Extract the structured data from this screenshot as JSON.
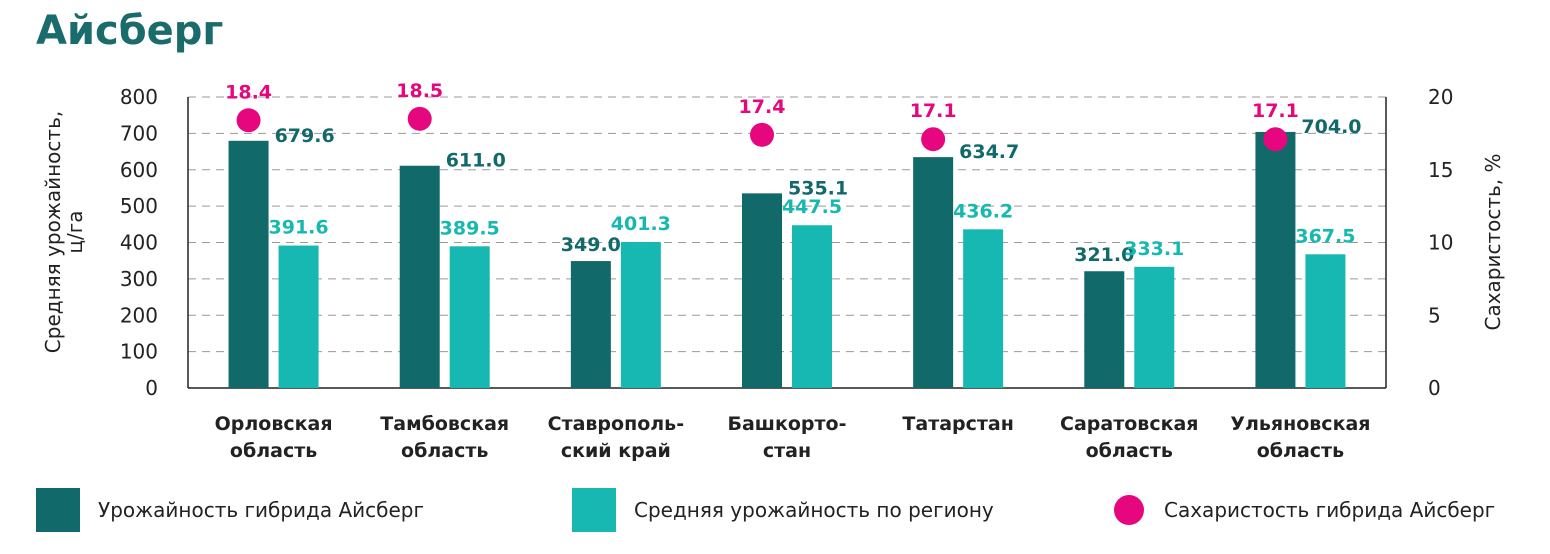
{
  "title": "Айсберг",
  "colors": {
    "yield": "#12696a",
    "avg": "#16b8b1",
    "sugar": "#e6067e",
    "title": "#1a6b6b"
  },
  "legend": [
    {
      "label": "Урожайность гибрида Айсберг",
      "marker": "square",
      "color": "#12696a"
    },
    {
      "label": "Средняя урожайность по региону",
      "marker": "square",
      "color": "#16b8b1"
    },
    {
      "label": "Сахаристость гибрида Айсберг",
      "marker": "circle",
      "color": "#e6067e"
    }
  ],
  "chart_data": {
    "type": "bar",
    "title": "Айсберг",
    "categories": [
      [
        "Орловская",
        "область"
      ],
      [
        "Тамбовская",
        "область"
      ],
      [
        "Ставрополь-",
        "ский край"
      ],
      [
        "Башкорто-",
        "стан"
      ],
      [
        "Татарстан"
      ],
      [
        "Саратовская",
        "область"
      ],
      [
        "Ульяновская",
        "область"
      ]
    ],
    "series": [
      {
        "name": "Урожайность гибрида Айсберг",
        "axis": "left",
        "type": "bar",
        "values": [
          679.6,
          611.0,
          349.0,
          535.1,
          634.7,
          321.0,
          704.0
        ],
        "labels": [
          "679.6",
          "611.0",
          "349.0",
          "535.1",
          "634.7",
          "321.0",
          "704.0"
        ]
      },
      {
        "name": "Средняя урожайность по региону",
        "axis": "left",
        "type": "bar",
        "values": [
          391.6,
          389.5,
          401.3,
          447.5,
          436.2,
          333.1,
          367.5
        ],
        "labels": [
          "391.6",
          "389.5",
          "401.3",
          "447.5",
          "436.2",
          "333.1",
          "367.5"
        ]
      },
      {
        "name": "Сахаристость гибрида Айсберг",
        "axis": "right",
        "type": "scatter",
        "values": [
          18.4,
          18.5,
          null,
          17.4,
          17.1,
          null,
          17.1
        ],
        "labels": [
          "18.4",
          "18.5",
          null,
          "17.4",
          "17.1",
          null,
          "17.1"
        ]
      }
    ],
    "ylabel": [
      "Средняя урожайность,",
      "ц/га"
    ],
    "y2label": "Сахаристость, %",
    "ylim": [
      0,
      800
    ],
    "yticks": [
      "0",
      "100",
      "200",
      "300",
      "400",
      "500",
      "600",
      "700",
      "800"
    ],
    "y2lim": [
      0,
      20
    ],
    "y2ticks": [
      "0",
      "5",
      "10",
      "15",
      "20"
    ],
    "grid": true,
    "legend_position": "bottom"
  }
}
